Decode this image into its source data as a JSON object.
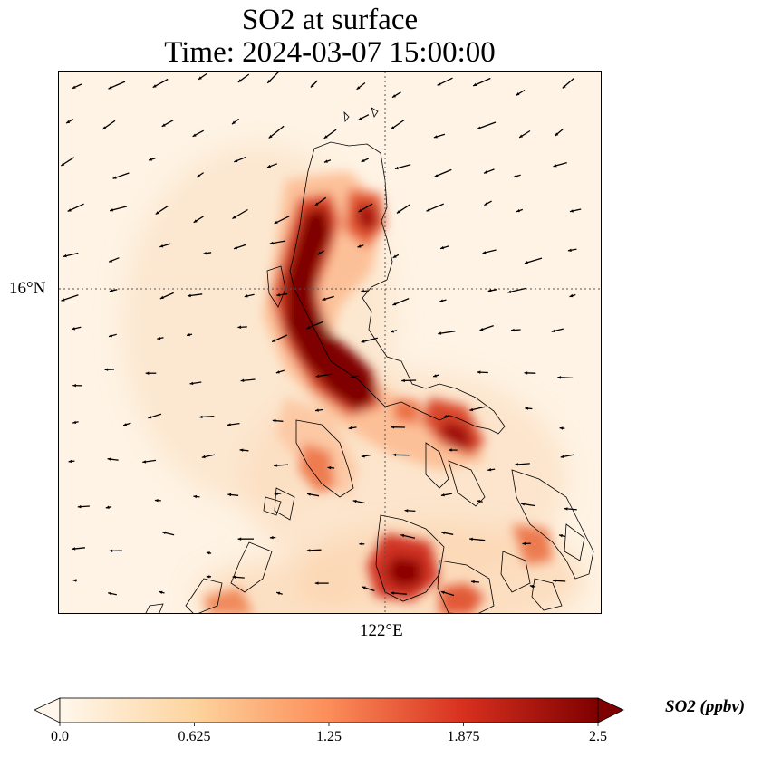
{
  "title_line1": "SO2 at surface",
  "title_line2": "Time: 2024-03-07 15:00:00",
  "gridlines": {
    "lat_label": "16°N",
    "lon_label": "122°E"
  },
  "colorbar": {
    "label": "SO2 (ppbv)",
    "ticks": [
      "0.0",
      "0.625",
      "1.25",
      "1.875",
      "2.5"
    ],
    "min": 0.0,
    "max": 2.5,
    "colormap": "OrRd",
    "colors": [
      "#fff7ec",
      "#fdd49e",
      "#fc8d59",
      "#d7301f",
      "#7f0000"
    ],
    "extend": "both"
  },
  "colors": {
    "background": "#fef3e4",
    "coastline": "#000000",
    "gridline": "#555555"
  }
}
